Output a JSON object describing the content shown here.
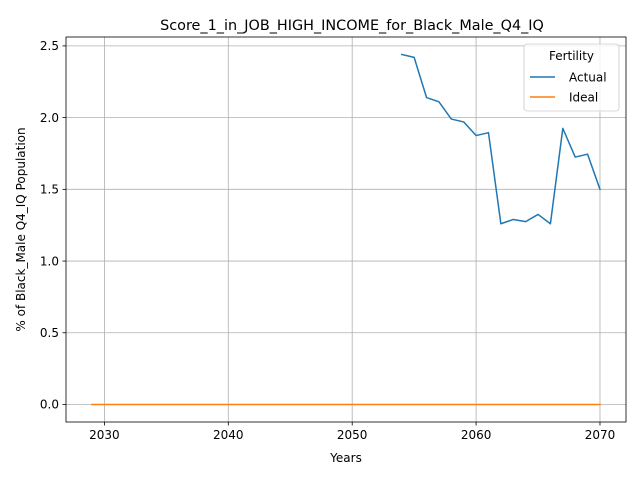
{
  "chart_data": {
    "type": "line",
    "title": "Score_1_in_JOB_HIGH_INCOME_for_Black_Male_Q4_IQ",
    "xlabel": "Years",
    "ylabel": "% of Black_Male Q4_IQ Population",
    "xlim": [
      2026.9,
      2072.1
    ],
    "ylim": [
      -0.122,
      2.562
    ],
    "x_ticks": [
      2030,
      2040,
      2050,
      2060,
      2070
    ],
    "y_ticks": [
      0.0,
      0.5,
      1.0,
      1.5,
      2.0,
      2.5
    ],
    "x_tick_labels": [
      "2030",
      "2040",
      "2050",
      "2060",
      "2070"
    ],
    "y_tick_labels": [
      "0.0",
      "0.5",
      "1.0",
      "1.5",
      "2.0",
      "2.5"
    ],
    "grid": true,
    "legend": {
      "title": "Fertility",
      "placement": "top-right"
    },
    "series": [
      {
        "name": "Actual",
        "color": "#1f77b4",
        "x": [
          2054,
          2055,
          2056,
          2057,
          2058,
          2059,
          2060,
          2061,
          2062,
          2063,
          2064,
          2065,
          2066,
          2067,
          2068,
          2069,
          2070
        ],
        "values": [
          2.44,
          2.42,
          2.14,
          2.11,
          1.99,
          1.97,
          1.875,
          1.895,
          1.26,
          1.29,
          1.275,
          1.325,
          1.26,
          1.925,
          1.725,
          1.745,
          1.5
        ]
      },
      {
        "name": "Ideal",
        "color": "#ff7f0e",
        "x": [
          2029,
          2070
        ],
        "values": [
          0.0,
          0.0
        ]
      }
    ]
  }
}
